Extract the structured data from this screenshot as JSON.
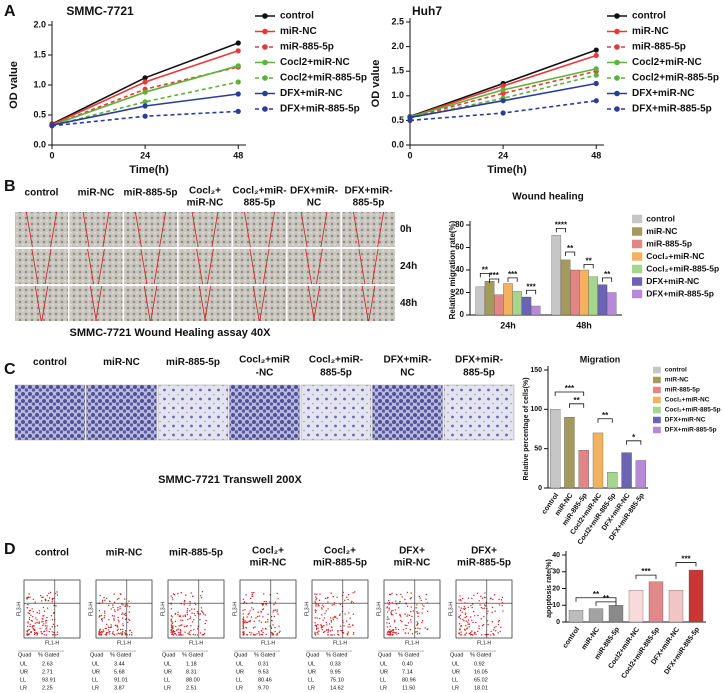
{
  "panel_a": {
    "letter": "A"
  },
  "panel_b": {
    "letter": "B",
    "columns": [
      [
        "control"
      ],
      [
        "miR-NC"
      ],
      [
        "miR-885-5p"
      ],
      [
        "Cocl₂+",
        "miR-NC"
      ],
      [
        "Cocl₂+miR-",
        "885-5p"
      ],
      [
        "DFX+miR-",
        "NC"
      ],
      [
        "DFX+miR-",
        "885-5p"
      ]
    ],
    "rows": [
      "0h",
      "24h",
      "48h"
    ],
    "caption": "SMMC-7721  Wound Healing assay 40X"
  },
  "panel_c": {
    "letter": "C",
    "columns": [
      [
        "control"
      ],
      [
        "miR-NC"
      ],
      [
        "miR-885-5p"
      ],
      [
        "Cocl₂+miR",
        "-NC"
      ],
      [
        "Cocl₂+miR-",
        "885-5p"
      ],
      [
        "DFX+miR-",
        "NC"
      ],
      [
        "DFX+miR-",
        "885-5p"
      ]
    ],
    "caption": "SMMC-7721 Transwell 200X"
  },
  "panel_d": {
    "letter": "D",
    "columns": [
      [
        "control"
      ],
      [
        "miR-NC"
      ],
      [
        "miR-885-5p"
      ],
      [
        "Cocl₂+",
        "miR-NC"
      ],
      [
        "Cocl₂+",
        "miR-885-5p"
      ],
      [
        "DFX+",
        "miR-NC"
      ],
      [
        "DFX+",
        "miR-885-5p"
      ]
    ],
    "axes": {
      "x": "FL1-H",
      "y": "FL3-H"
    },
    "tables": [
      {
        "header": [
          "Quad",
          "% Gated"
        ],
        "rows": [
          [
            "UL",
            "2.63"
          ],
          [
            "UR",
            "2.71"
          ],
          [
            "LL",
            "93.91"
          ],
          [
            "LR",
            "2.25"
          ]
        ]
      },
      {
        "header": [
          "Quad",
          "% Gated"
        ],
        "rows": [
          [
            "UL",
            "3.44"
          ],
          [
            "UR",
            "5.68"
          ],
          [
            "LL",
            "91.01"
          ],
          [
            "LR",
            "3.87"
          ]
        ]
      },
      {
        "header": [
          "Quad",
          "% Gated"
        ],
        "rows": [
          [
            "UL",
            "1.18"
          ],
          [
            "UR",
            "8.31"
          ],
          [
            "LL",
            "88.00"
          ],
          [
            "LR",
            "2.51"
          ]
        ]
      },
      {
        "header": [
          "Quad",
          "% Gated"
        ],
        "rows": [
          [
            "UL",
            "0.31"
          ],
          [
            "UR",
            "9.53"
          ],
          [
            "LL",
            "80.46"
          ],
          [
            "LR",
            "9.70"
          ]
        ]
      },
      {
        "header": [
          "Quad",
          "% Gated"
        ],
        "rows": [
          [
            "UL",
            "0.33"
          ],
          [
            "UR",
            "9.95"
          ],
          [
            "LL",
            "75.10"
          ],
          [
            "LR",
            "14.62"
          ]
        ]
      },
      {
        "header": [
          "Quad",
          "% Gated"
        ],
        "rows": [
          [
            "UL",
            "0.40"
          ],
          [
            "UR",
            "7.14"
          ],
          [
            "LL",
            "80.96"
          ],
          [
            "LR",
            "11.50"
          ]
        ]
      },
      {
        "header": [
          "Quad",
          "% Gated"
        ],
        "rows": [
          [
            "UL",
            "0.92"
          ],
          [
            "UR",
            "16.05"
          ],
          [
            "LL",
            "65.02"
          ],
          [
            "LR",
            "18.01"
          ]
        ]
      }
    ]
  },
  "chart_data": [
    {
      "type": "line",
      "title": "SMMC-7721",
      "xlabel": "Time(h)",
      "ylabel": "OD value",
      "x": [
        0,
        24,
        48
      ],
      "xlim": [
        0,
        50
      ],
      "xticks": [
        0,
        24,
        48
      ],
      "ylim": [
        0,
        2
      ],
      "yticks": [
        {
          "value": 0,
          "label": "0.0"
        },
        0.5,
        {
          "value": 1,
          "label": "1.0"
        },
        1.5,
        {
          "value": 2,
          "label": "2.0"
        }
      ],
      "series": [
        {
          "name": "control",
          "color": "#111111",
          "line_style": "solid",
          "values": [
            0.35,
            1.12,
            1.7
          ]
        },
        {
          "name": "miR-NC",
          "color": "#e8393a",
          "line_style": "solid",
          "values": [
            0.34,
            1.05,
            1.57
          ]
        },
        {
          "name": "miR-885-5p",
          "color": "#e8393a",
          "line_style": "dashed",
          "values": [
            0.33,
            0.93,
            1.3
          ]
        },
        {
          "name": "Cocl2+miR-NC",
          "color": "#5cb338",
          "line_style": "solid",
          "values": [
            0.33,
            0.88,
            1.32
          ]
        },
        {
          "name": "Cocl2+miR-885-5p",
          "color": "#5cb338",
          "line_style": "dashed",
          "values": [
            0.32,
            0.72,
            1.05
          ]
        },
        {
          "name": "DFX+miR-NC",
          "color": "#2a3c9c",
          "line_style": "solid",
          "values": [
            0.33,
            0.65,
            0.85
          ]
        },
        {
          "name": "DFX+miR-885-5p",
          "color": "#2a3c9c",
          "line_style": "dashed",
          "values": [
            0.32,
            0.48,
            0.56
          ]
        }
      ]
    },
    {
      "type": "line",
      "title": "Huh7",
      "xlabel": "Time(h)",
      "ylabel": "OD value",
      "x": [
        0,
        24,
        48
      ],
      "xlim": [
        0,
        50
      ],
      "xticks": [
        0,
        24,
        48
      ],
      "ylim": [
        0,
        2.5
      ],
      "yticks": [
        {
          "value": 0,
          "label": "0.0"
        },
        0.5,
        {
          "value": 1,
          "label": "1.0"
        },
        1.5,
        {
          "value": 2,
          "label": "2.0"
        },
        2.5
      ],
      "series": [
        {
          "name": "control",
          "color": "#111111",
          "line_style": "solid",
          "values": [
            0.58,
            1.25,
            1.93
          ]
        },
        {
          "name": "miR-NC",
          "color": "#e8393a",
          "line_style": "solid",
          "values": [
            0.57,
            1.2,
            1.82
          ]
        },
        {
          "name": "miR-885-5p",
          "color": "#e8393a",
          "line_style": "dashed",
          "values": [
            0.56,
            1.05,
            1.5
          ]
        },
        {
          "name": "Cocl2+miR-NC",
          "color": "#5cb338",
          "line_style": "solid",
          "values": [
            0.57,
            1.12,
            1.55
          ]
        },
        {
          "name": "Cocl2+miR-885-5p",
          "color": "#5cb338",
          "line_style": "dashed",
          "values": [
            0.55,
            0.95,
            1.42
          ]
        },
        {
          "name": "DFX+miR-NC",
          "color": "#2a3c9c",
          "line_style": "solid",
          "values": [
            0.56,
            0.9,
            1.25
          ]
        },
        {
          "name": "DFX+miR-885-5p",
          "color": "#2a3c9c",
          "line_style": "dashed",
          "values": [
            0.5,
            0.65,
            0.9
          ]
        }
      ]
    },
    {
      "type": "bar",
      "title": "Wound healing",
      "ylabel": "Relative migration rate(%)",
      "categories": [
        "24h",
        "48h"
      ],
      "ylim": [
        0,
        80
      ],
      "yticks": [
        0,
        20,
        40,
        60,
        80
      ],
      "series": [
        {
          "name": "control",
          "color": "#c6c6c6",
          "values": [
            25,
            71
          ]
        },
        {
          "name": "miR-NC",
          "color": "#a39a5e",
          "values": [
            30,
            49
          ]
        },
        {
          "name": "miR-885-5p",
          "color": "#e38486",
          "values": [
            18,
            40
          ]
        },
        {
          "name": "Cocl₂+miR-NC",
          "color": "#f2b25f",
          "values": [
            28,
            40
          ]
        },
        {
          "name": "Cocl₂+miR-885-5p",
          "color": "#a6d58d",
          "values": [
            21,
            34
          ]
        },
        {
          "name": "DFX+miR-NC",
          "color": "#6b63b3",
          "values": [
            16,
            27
          ]
        },
        {
          "name": "DFX+miR-885-5p",
          "color": "#b78ad9",
          "values": [
            8,
            20
          ]
        }
      ],
      "annotations": [
        "**",
        "***",
        "***",
        "***",
        "****",
        "**",
        "**",
        "**"
      ]
    },
    {
      "type": "bar",
      "title": "Migration",
      "ylabel": "Relative percentage of cells(%)",
      "categories": [
        "control",
        "miR-NC",
        "miR-885-5p",
        "Cocl2+miR-NC",
        "Cocl2+miR-885-5p",
        "DFX+miR-NC",
        "DFX+miR-885-5p"
      ],
      "values": [
        100,
        90,
        48,
        70,
        20,
        45,
        35
      ],
      "colors": [
        "#c6c6c6",
        "#a39a5e",
        "#e38486",
        "#f2b25f",
        "#a6d58d",
        "#6b63b3",
        "#b78ad9"
      ],
      "legend_labels": [
        "control",
        "miR-NC",
        "miR-885-5p",
        "Cocl₂+miR-NC",
        "Cocl₂+miR-885-5p",
        "DFX+miR-NC",
        "DFX+miR-885-5p"
      ],
      "ylim": [
        0,
        150
      ],
      "yticks": [
        0,
        50,
        100,
        150
      ],
      "annotations": [
        "***",
        "**",
        "**",
        "*"
      ]
    },
    {
      "type": "bar",
      "ylabel": "apoptosis rate(%)",
      "categories": [
        "control",
        "miR-NC",
        "miR-885-5p",
        "Cocl2+miR-NC",
        "Cocl2+miR-885-5p",
        "DFX+miR-NC",
        "DFX+miR-885-5p"
      ],
      "values": [
        7,
        8,
        10,
        19,
        24,
        19,
        31
      ],
      "colors": [
        "#bdbdbd",
        "#a3a3a3",
        "#8a8a8a",
        "#f7dada",
        "#e0898b",
        "#f2c5c5",
        "#cc3535"
      ],
      "ylim": [
        0,
        40
      ],
      "yticks": [
        0,
        10,
        20,
        30,
        40
      ],
      "annotations": [
        "**",
        "**",
        "***",
        "***"
      ]
    }
  ]
}
